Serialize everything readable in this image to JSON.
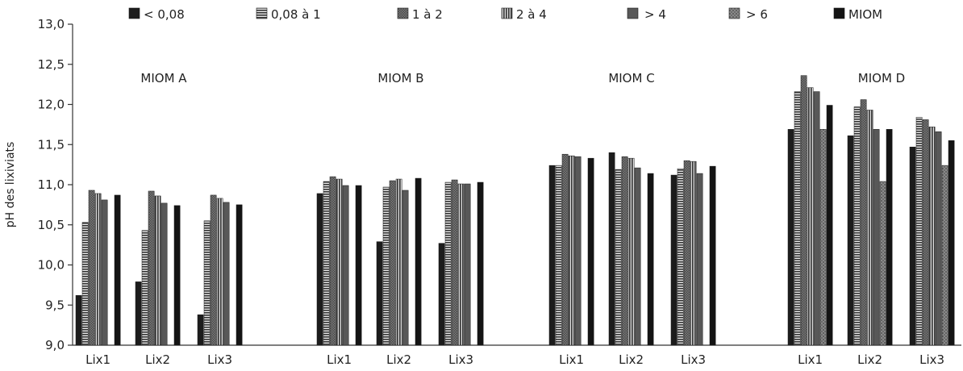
{
  "chart_data": {
    "type": "bar",
    "title": "",
    "ylabel": "pH des lixiviats",
    "xlabel": "",
    "ylim": [
      9.0,
      13.0
    ],
    "yticks": [
      "9,0",
      "9,5",
      "10,0",
      "10,5",
      "11,0",
      "11,5",
      "12,0",
      "12,5",
      "13,0"
    ],
    "grid": false,
    "legend_position": "top",
    "series": [
      {
        "name": "< 0,08",
        "pattern": "solid",
        "color": "#1c1c1c"
      },
      {
        "name": "0,08 à 1",
        "pattern": "hlines",
        "color": "#3a3a3a"
      },
      {
        "name": "1 à 2",
        "pattern": "dense",
        "color": "#6a6a6a"
      },
      {
        "name": "2 à 4",
        "pattern": "vlines",
        "color": "#4a4a4a"
      },
      {
        "name": "> 4",
        "pattern": "solid",
        "color": "#585858"
      },
      {
        "name": "> 6",
        "pattern": "dots",
        "color": "#777777"
      },
      {
        "name": "MIOM",
        "pattern": "solid",
        "color": "#141414"
      }
    ],
    "groups": [
      {
        "name": "MIOM A",
        "categories": [
          {
            "label": "Lix1",
            "values": [
              9.62,
              10.53,
              10.93,
              10.89,
              10.81,
              null,
              10.87
            ]
          },
          {
            "label": "Lix2",
            "values": [
              9.79,
              10.43,
              10.92,
              10.86,
              10.77,
              null,
              10.74
            ]
          },
          {
            "label": "Lix3",
            "values": [
              9.38,
              10.55,
              10.87,
              10.83,
              10.78,
              null,
              10.75
            ]
          }
        ]
      },
      {
        "name": "MIOM B",
        "categories": [
          {
            "label": "Lix1",
            "values": [
              10.89,
              11.04,
              11.1,
              11.07,
              10.99,
              null,
              10.99
            ]
          },
          {
            "label": "Lix2",
            "values": [
              10.29,
              10.97,
              11.05,
              11.07,
              10.93,
              null,
              11.08
            ]
          },
          {
            "label": "Lix3",
            "values": [
              10.27,
              11.03,
              11.06,
              11.01,
              11.01,
              null,
              11.03
            ]
          }
        ]
      },
      {
        "name": "MIOM C",
        "categories": [
          {
            "label": "Lix1",
            "values": [
              11.24,
              11.24,
              11.38,
              11.36,
              11.35,
              null,
              11.33
            ]
          },
          {
            "label": "Lix2",
            "values": [
              11.4,
              11.19,
              11.35,
              11.33,
              11.21,
              null,
              11.14
            ]
          },
          {
            "label": "Lix3",
            "values": [
              11.12,
              11.2,
              11.3,
              11.29,
              11.14,
              null,
              11.23
            ]
          }
        ]
      },
      {
        "name": "MIOM D",
        "categories": [
          {
            "label": "Lix1",
            "values": [
              11.69,
              12.16,
              12.36,
              12.21,
              12.16,
              11.69,
              11.99
            ]
          },
          {
            "label": "Lix2",
            "values": [
              11.61,
              11.97,
              12.06,
              11.93,
              11.69,
              11.04,
              11.69
            ]
          },
          {
            "label": "Lix3",
            "values": [
              11.47,
              11.84,
              11.81,
              11.72,
              11.66,
              11.24,
              11.55
            ]
          }
        ]
      }
    ]
  }
}
